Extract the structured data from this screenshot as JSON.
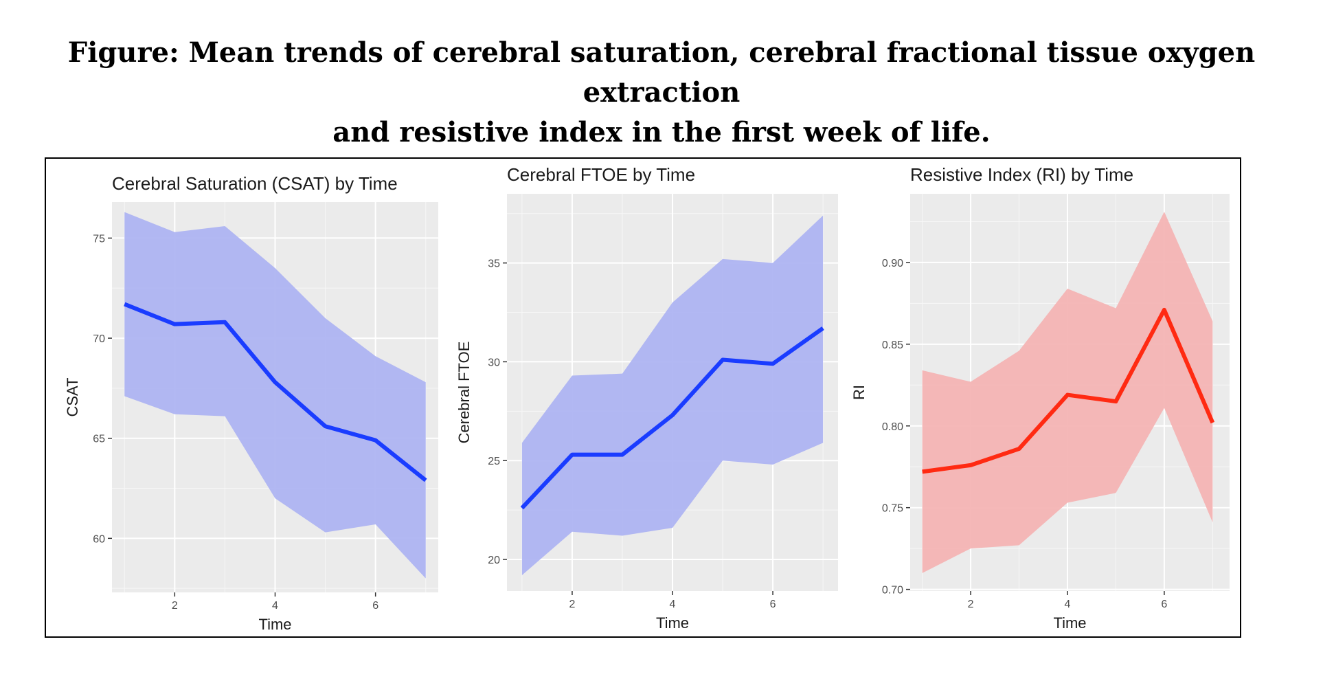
{
  "figure": {
    "title_line1": "Figure: Mean trends of cerebral saturation, cerebral fractional tissue oxygen extraction",
    "title_line2": "and resistive index in the first week of life."
  },
  "chart_data": [
    {
      "type": "area",
      "title": "Cerebral Saturation (CSAT) by Time",
      "xlabel": "Time",
      "ylabel": "CSAT",
      "xlim": [
        0.75,
        7.25
      ],
      "ylim": [
        57.3,
        76.8
      ],
      "xticks": [
        2,
        4,
        6
      ],
      "yticks": [
        60,
        65,
        70,
        75
      ],
      "grid": true,
      "line_color": "#1a3cff",
      "band_color": "#aeb4f2",
      "x": [
        1,
        2,
        3,
        4,
        5,
        6,
        7
      ],
      "mean": [
        71.7,
        70.7,
        70.8,
        67.8,
        65.6,
        64.9,
        62.9
      ],
      "lower": [
        67.1,
        66.2,
        66.1,
        62.0,
        60.3,
        60.7,
        58.0
      ],
      "upper": [
        76.3,
        75.3,
        75.6,
        73.5,
        71.0,
        69.1,
        67.8
      ]
    },
    {
      "type": "area",
      "title": "Cerebral FTOE by Time",
      "xlabel": "Time",
      "ylabel": "Cerebral FTOE",
      "xlim": [
        0.7,
        7.3
      ],
      "ylim": [
        18.4,
        38.5
      ],
      "xticks": [
        2,
        4,
        6
      ],
      "yticks": [
        20,
        25,
        30,
        35
      ],
      "grid": true,
      "line_color": "#1a3cff",
      "band_color": "#aeb4f2",
      "x": [
        1,
        2,
        3,
        4,
        5,
        6,
        7
      ],
      "mean": [
        22.6,
        25.3,
        25.3,
        27.3,
        30.1,
        29.9,
        31.7
      ],
      "lower": [
        19.2,
        21.4,
        21.2,
        21.6,
        25.0,
        24.8,
        25.9
      ],
      "upper": [
        25.9,
        29.3,
        29.4,
        33.0,
        35.2,
        35.0,
        37.4
      ]
    },
    {
      "type": "area",
      "title": "Resistive Index (RI) by Time",
      "xlabel": "Time",
      "ylabel": "RI",
      "xlim": [
        0.75,
        7.35
      ],
      "ylim": [
        0.699,
        0.942
      ],
      "xticks": [
        2,
        4,
        6
      ],
      "yticks": [
        0.7,
        0.75,
        0.8,
        0.85,
        0.9
      ],
      "ytick_labels": [
        "0.70",
        "0.75",
        "0.80",
        "0.85",
        "0.90"
      ],
      "grid": true,
      "line_color": "#ff2a12",
      "band_color": "#f4b4b4",
      "x": [
        1,
        2,
        3,
        4,
        5,
        6,
        7
      ],
      "mean": [
        0.772,
        0.776,
        0.786,
        0.819,
        0.815,
        0.871,
        0.802
      ],
      "lower": [
        0.71,
        0.725,
        0.727,
        0.753,
        0.759,
        0.811,
        0.741
      ],
      "upper": [
        0.834,
        0.827,
        0.846,
        0.884,
        0.872,
        0.931,
        0.864
      ]
    }
  ]
}
